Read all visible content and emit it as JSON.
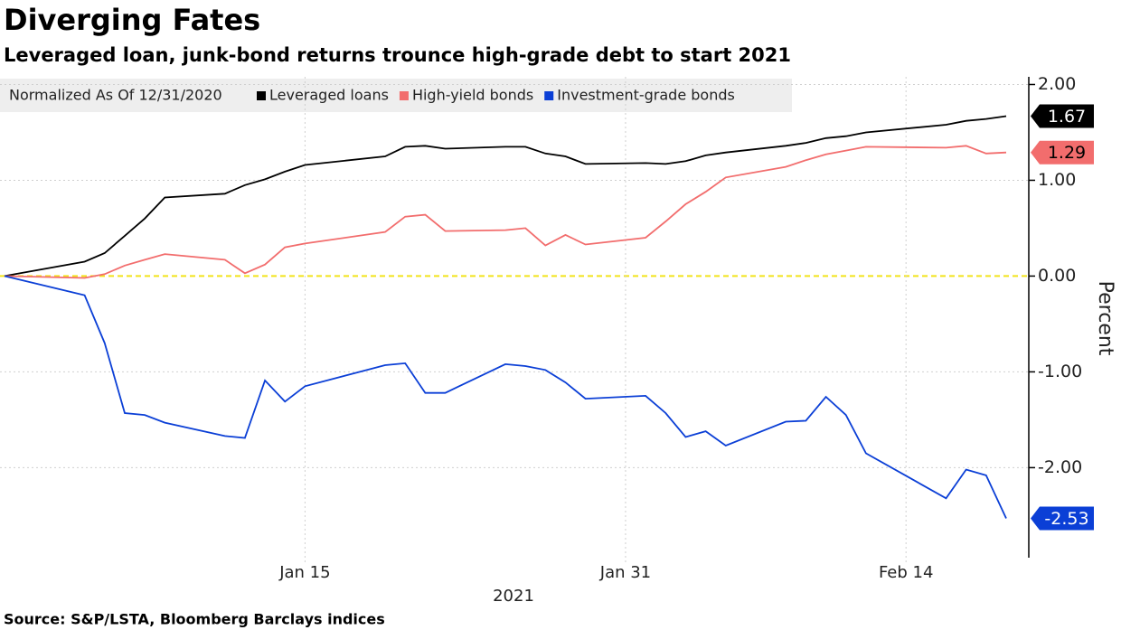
{
  "chart_data": {
    "type": "line",
    "title": "Diverging Fates",
    "subtitle": "Leveraged loan, junk-bond returns trounce high-grade debt to start 2021",
    "legend_title": "Normalized As Of 12/31/2020",
    "ylabel": "Percent",
    "xlabel": "2021",
    "source": "Source: S&P/LSTA, Bloomberg Barclays indices",
    "x": [
      "2020-12-31",
      "2021-01-04",
      "2021-01-05",
      "2021-01-06",
      "2021-01-07",
      "2021-01-08",
      "2021-01-11",
      "2021-01-12",
      "2021-01-13",
      "2021-01-14",
      "2021-01-15",
      "2021-01-19",
      "2021-01-20",
      "2021-01-21",
      "2021-01-22",
      "2021-01-25",
      "2021-01-26",
      "2021-01-27",
      "2021-01-28",
      "2021-01-29",
      "2021-02-01",
      "2021-02-02",
      "2021-02-03",
      "2021-02-04",
      "2021-02-05",
      "2021-02-08",
      "2021-02-09",
      "2021-02-10",
      "2021-02-11",
      "2021-02-12",
      "2021-02-16",
      "2021-02-17",
      "2021-02-18",
      "2021-02-19"
    ],
    "series": [
      {
        "name": "Leveraged loans",
        "color": "#000000",
        "label_text_color": "#ffffff",
        "values": [
          0,
          0.15,
          0.24,
          0.42,
          0.6,
          0.82,
          0.86,
          0.95,
          1.01,
          1.09,
          1.16,
          1.25,
          1.35,
          1.36,
          1.33,
          1.35,
          1.35,
          1.28,
          1.25,
          1.17,
          1.18,
          1.17,
          1.2,
          1.26,
          1.29,
          1.36,
          1.39,
          1.44,
          1.46,
          1.5,
          1.58,
          1.62,
          1.64,
          1.67
        ]
      },
      {
        "name": "High-yield bonds",
        "color": "#f26d6d",
        "label_text_color": "#000000",
        "values": [
          0,
          -0.02,
          0.02,
          0.11,
          0.17,
          0.23,
          0.17,
          0.03,
          0.12,
          0.3,
          0.34,
          0.46,
          0.62,
          0.64,
          0.47,
          0.48,
          0.5,
          0.32,
          0.43,
          0.33,
          0.4,
          0.57,
          0.75,
          0.88,
          1.03,
          1.14,
          1.21,
          1.27,
          1.31,
          1.35,
          1.34,
          1.36,
          1.28,
          1.29
        ]
      },
      {
        "name": "Investment-grade bonds",
        "color": "#0b3fd6",
        "label_text_color": "#ffffff",
        "values": [
          0,
          -0.2,
          -0.7,
          -1.43,
          -1.45,
          -1.53,
          -1.67,
          -1.69,
          -1.09,
          -1.31,
          -1.15,
          -0.93,
          -0.91,
          -1.22,
          -1.22,
          -0.92,
          -0.94,
          -0.98,
          -1.11,
          -1.28,
          -1.25,
          -1.43,
          -1.68,
          -1.62,
          -1.77,
          -1.52,
          -1.51,
          -1.26,
          -1.45,
          -1.85,
          -2.32,
          -2.02,
          -2.08,
          -2.53
        ]
      }
    ],
    "xlim": [
      "2020-12-31",
      "2021-02-19"
    ],
    "xticks": [
      {
        "value": "2021-01-15",
        "label": "Jan 15"
      },
      {
        "value": "2021-01-31",
        "label": "Jan 31"
      },
      {
        "value": "2021-02-14",
        "label": "Feb 14"
      }
    ],
    "ylim": [
      -2.94,
      2.08
    ],
    "yticks": [
      {
        "value": 2,
        "label": "2.00"
      },
      {
        "value": 1,
        "label": "1.00"
      },
      {
        "value": 0,
        "label": "0.00"
      },
      {
        "value": -1,
        "label": "-1.00"
      },
      {
        "value": -2,
        "label": "-2.00"
      }
    ],
    "grid": true,
    "zero_line_color": "#f2e31b"
  }
}
